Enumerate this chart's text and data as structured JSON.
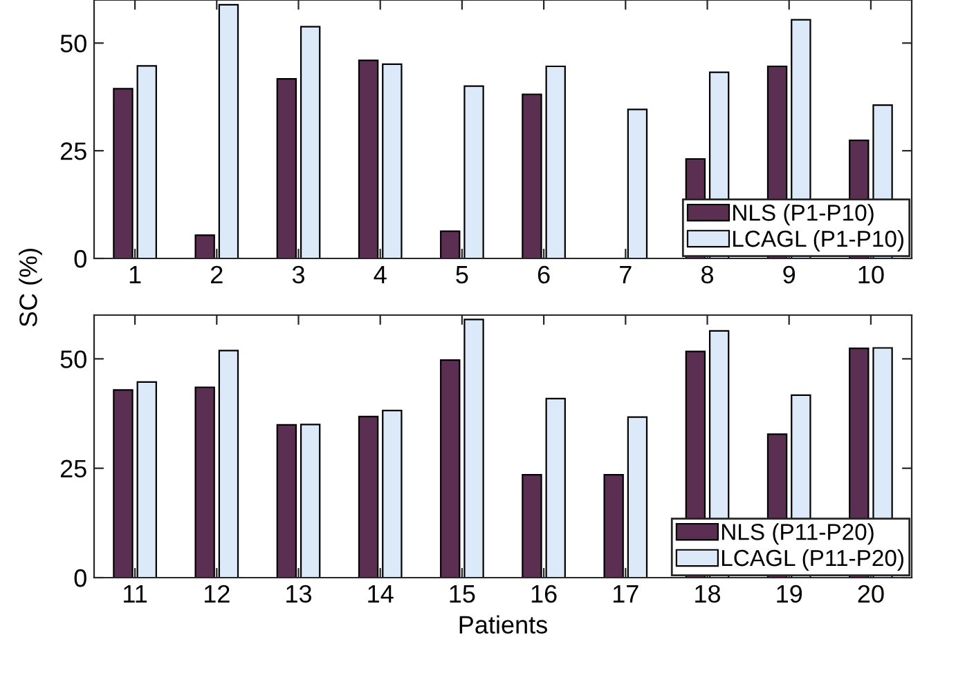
{
  "chart_data": [
    {
      "type": "bar",
      "ylabel": "SC (%)",
      "categories": [
        "1",
        "2",
        "3",
        "4",
        "5",
        "6",
        "7",
        "8",
        "9",
        "10"
      ],
      "ylim": [
        0,
        60
      ],
      "yticks": [
        0,
        25,
        50
      ],
      "legend": "bottom right",
      "grid": false,
      "series": [
        {
          "name": "NLS (P1-P10)",
          "color": "#5a2f52",
          "values": [
            39.4,
            5.4,
            41.7,
            46.0,
            6.3,
            38.1,
            0,
            23.1,
            44.6,
            27.4
          ]
        },
        {
          "name": "LCAGL (P1-P10)",
          "color": "#dce9f8",
          "values": [
            44.7,
            58.9,
            53.8,
            45.1,
            40.0,
            44.6,
            34.6,
            43.2,
            55.4,
            35.6
          ]
        }
      ]
    },
    {
      "type": "bar",
      "xlabel": "Patients",
      "categories": [
        "11",
        "12",
        "13",
        "14",
        "15",
        "16",
        "17",
        "18",
        "19",
        "20"
      ],
      "ylim": [
        0,
        60
      ],
      "yticks": [
        0,
        25,
        50
      ],
      "legend": "bottom right",
      "grid": false,
      "series": [
        {
          "name": "NLS (P11-P20)",
          "color": "#5a2f52",
          "values": [
            42.9,
            43.5,
            34.9,
            36.8,
            49.7,
            23.5,
            23.5,
            51.7,
            32.8,
            52.4
          ]
        },
        {
          "name": "LCAGL (P11-P20)",
          "color": "#dce9f8",
          "values": [
            44.7,
            51.9,
            35.0,
            38.2,
            59.0,
            40.9,
            36.7,
            56.4,
            41.7,
            52.5
          ]
        }
      ]
    }
  ]
}
